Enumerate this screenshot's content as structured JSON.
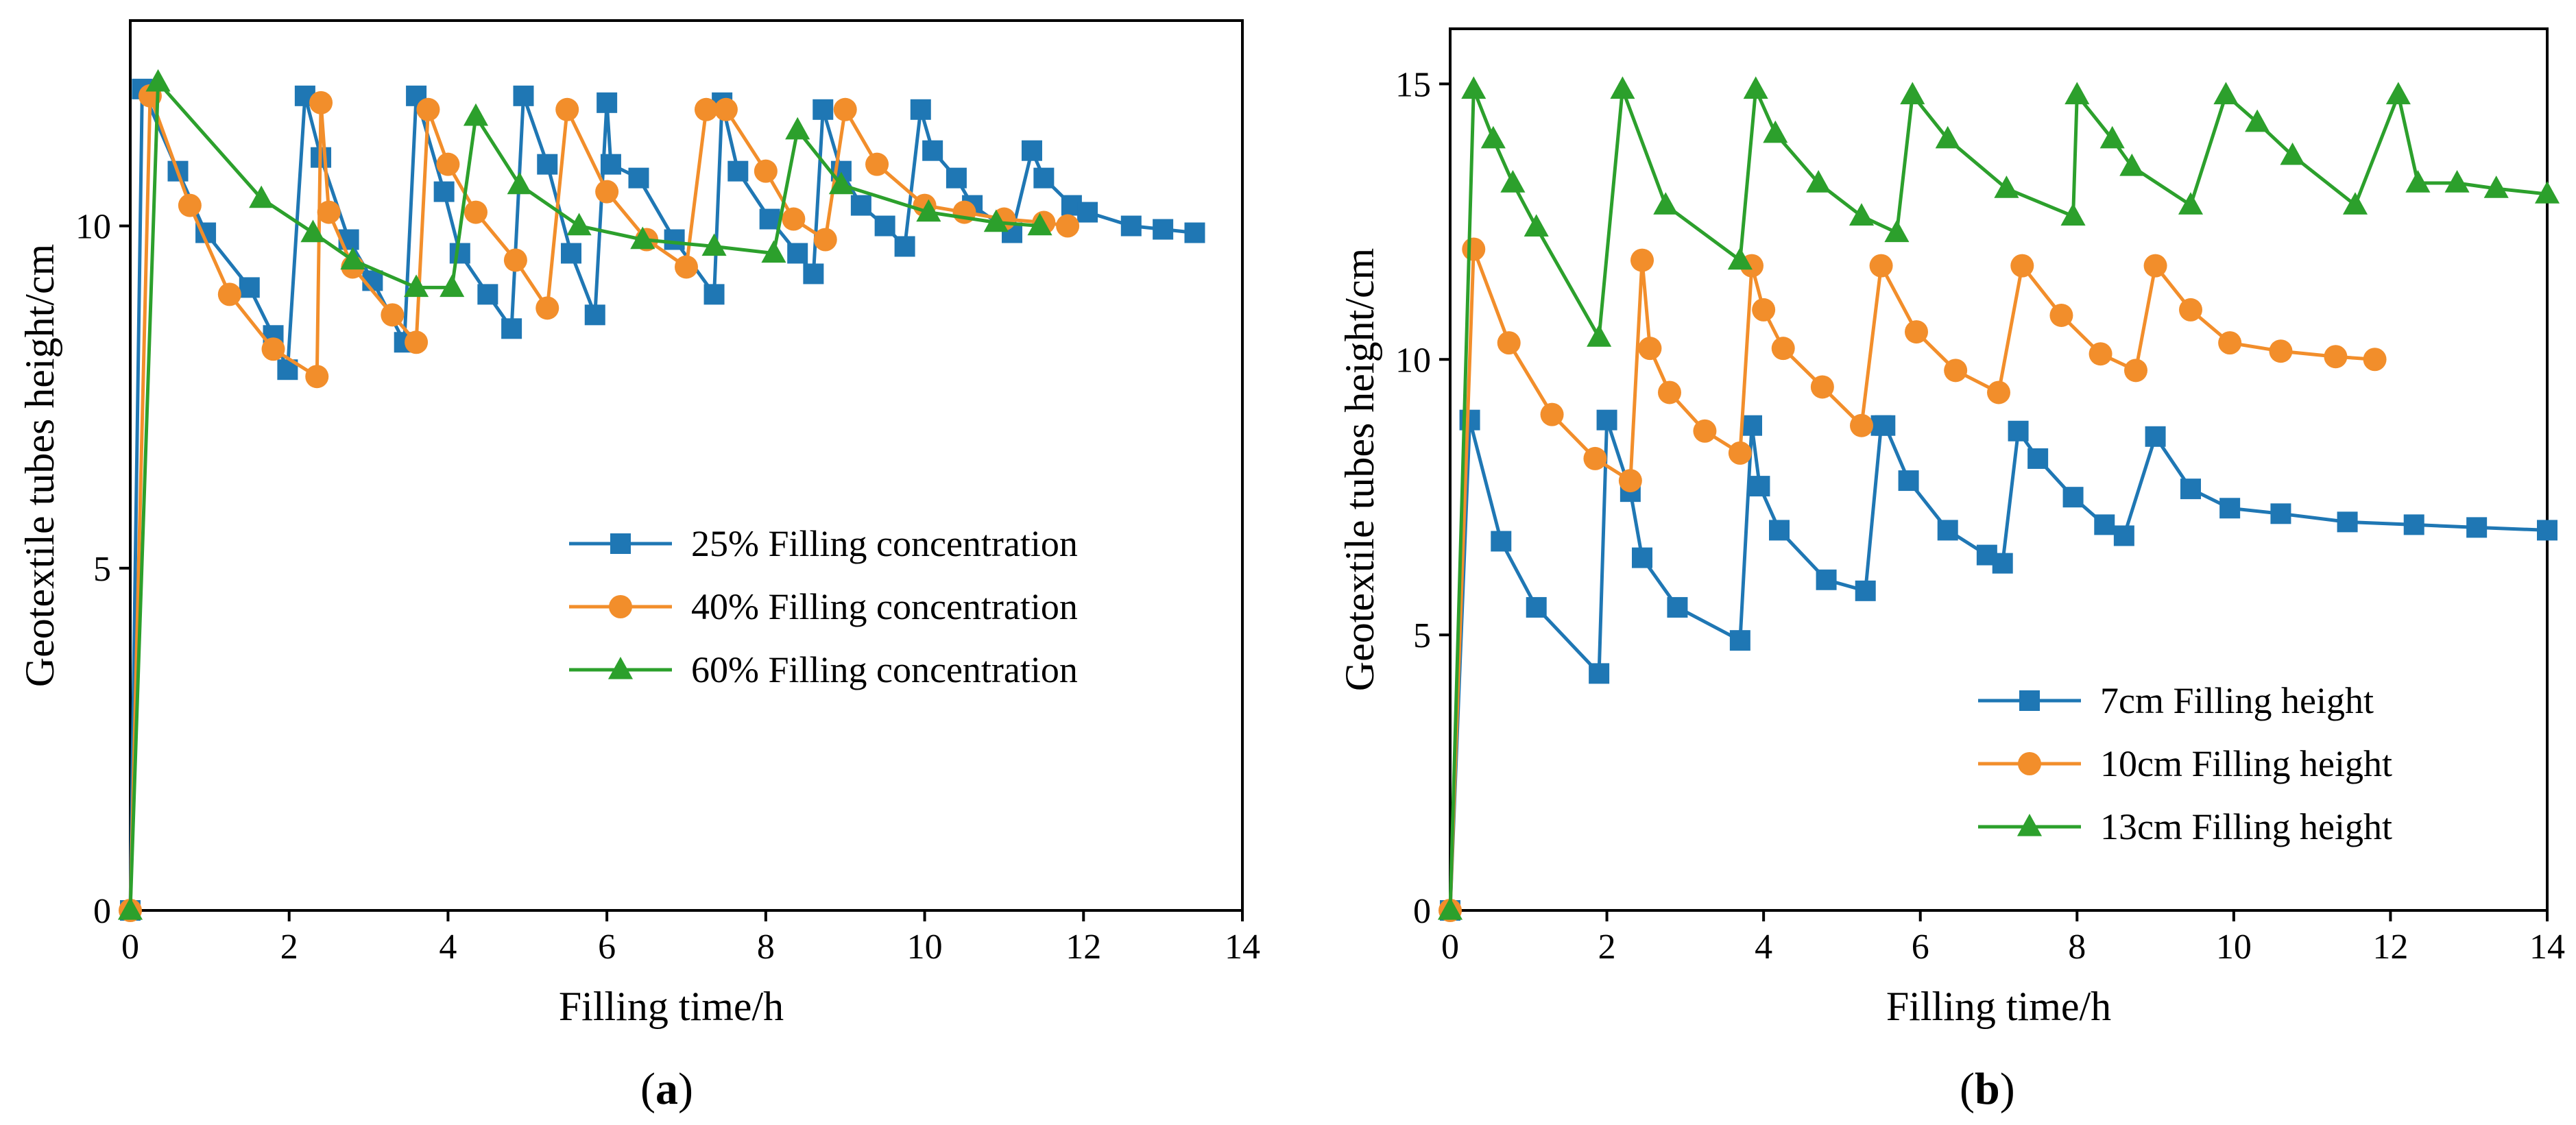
{
  "chart_data": [
    {
      "panel": "a",
      "type": "line",
      "xlabel": "Filling time/h",
      "ylabel": "Geotextile tubes height/cm",
      "xlim": [
        0,
        14
      ],
      "ylim": [
        0,
        13
      ],
      "xticks": [
        0,
        2,
        4,
        6,
        8,
        10,
        12,
        14
      ],
      "yticks": [
        0,
        5,
        10
      ],
      "legend_position": "center-right",
      "series": [
        {
          "name": "25% Filling concentration",
          "marker": "square",
          "color": "#1F77B4",
          "x": [
            0,
            0.15,
            0.6,
            0.95,
            1.5,
            1.8,
            1.98,
            2.2,
            2.4,
            2.75,
            3.05,
            3.45,
            3.6,
            3.95,
            4.15,
            4.5,
            4.8,
            4.95,
            5.25,
            5.55,
            5.85,
            6.0,
            6.05,
            6.4,
            6.85,
            7.35,
            7.45,
            7.65,
            8.05,
            8.4,
            8.6,
            8.72,
            8.95,
            9.2,
            9.5,
            9.75,
            9.95,
            10.1,
            10.4,
            10.6,
            11.1,
            11.35,
            11.5,
            11.85,
            12.05,
            12.6,
            13.0,
            13.4
          ],
          "y": [
            0,
            12.0,
            10.8,
            9.9,
            9.1,
            8.4,
            7.9,
            11.9,
            11.0,
            9.8,
            9.2,
            8.3,
            11.9,
            10.5,
            9.6,
            9.0,
            8.5,
            11.9,
            10.9,
            9.6,
            8.7,
            11.8,
            10.9,
            10.7,
            9.8,
            9.0,
            11.8,
            10.8,
            10.1,
            9.6,
            9.3,
            11.7,
            10.8,
            10.3,
            10.0,
            9.7,
            11.7,
            11.1,
            10.7,
            10.3,
            9.9,
            11.1,
            10.7,
            10.3,
            10.2,
            10.0,
            9.95,
            9.9
          ]
        },
        {
          "name": "40% Filling concentration",
          "marker": "circle",
          "color": "#F28E2B",
          "x": [
            0,
            0.25,
            0.75,
            1.25,
            1.8,
            2.35,
            2.4,
            2.5,
            2.8,
            3.3,
            3.6,
            3.75,
            4.0,
            4.35,
            4.85,
            5.25,
            5.5,
            6.0,
            6.5,
            7.0,
            7.25,
            7.5,
            8.0,
            8.35,
            8.75,
            9.0,
            9.4,
            10.0,
            10.5,
            11.0,
            11.5,
            11.8
          ],
          "y": [
            0,
            11.9,
            10.3,
            9.0,
            8.2,
            7.8,
            11.8,
            10.2,
            9.4,
            8.7,
            8.3,
            11.7,
            10.9,
            10.2,
            9.5,
            8.8,
            11.7,
            10.5,
            9.8,
            9.4,
            11.7,
            11.7,
            10.8,
            10.1,
            9.8,
            11.7,
            10.9,
            10.3,
            10.2,
            10.1,
            10.05,
            10.0
          ]
        },
        {
          "name": "60% Filling concentration",
          "marker": "triangle",
          "color": "#2CA02C",
          "x": [
            0,
            0.35,
            1.65,
            2.3,
            2.8,
            3.6,
            4.05,
            4.35,
            4.9,
            5.65,
            6.45,
            7.35,
            8.1,
            8.4,
            8.95,
            10.05,
            10.9,
            11.45
          ],
          "y": [
            0,
            12.1,
            10.4,
            9.9,
            9.5,
            9.1,
            9.1,
            11.6,
            10.6,
            10.0,
            9.8,
            9.7,
            9.6,
            11.4,
            10.6,
            10.2,
            10.05,
            10.0
          ]
        }
      ]
    },
    {
      "panel": "b",
      "type": "line",
      "xlabel": "Filling time/h",
      "ylabel": "Geotextile tubes height/cm",
      "xlim": [
        0,
        14
      ],
      "ylim": [
        0,
        16
      ],
      "xticks": [
        0,
        2,
        4,
        6,
        8,
        10,
        12,
        14
      ],
      "yticks": [
        0,
        5,
        10,
        15
      ],
      "legend_position": "bottom-right",
      "series": [
        {
          "name": "7cm Filling height",
          "marker": "square",
          "color": "#1F77B4",
          "x": [
            0,
            0.25,
            0.65,
            1.1,
            1.9,
            2.0,
            2.3,
            2.45,
            2.9,
            3.7,
            3.85,
            3.95,
            4.2,
            4.8,
            5.3,
            5.5,
            5.55,
            5.85,
            6.35,
            6.85,
            7.05,
            7.25,
            7.5,
            7.95,
            8.35,
            8.6,
            9.0,
            9.45,
            9.95,
            10.6,
            11.45,
            12.3,
            13.1,
            14.0
          ],
          "y": [
            0,
            8.9,
            6.7,
            5.5,
            4.3,
            8.9,
            7.6,
            6.4,
            5.5,
            4.9,
            8.8,
            7.7,
            6.9,
            6.0,
            5.8,
            8.8,
            8.8,
            7.8,
            6.9,
            6.45,
            6.3,
            8.7,
            8.2,
            7.5,
            7.0,
            6.8,
            8.6,
            7.65,
            7.3,
            7.2,
            7.05,
            7.0,
            6.95,
            6.9
          ]
        },
        {
          "name": "10cm Filling height",
          "marker": "circle",
          "color": "#F28E2B",
          "x": [
            0,
            0.3,
            0.75,
            1.3,
            1.85,
            2.3,
            2.45,
            2.55,
            2.8,
            3.25,
            3.7,
            3.85,
            4.0,
            4.25,
            4.75,
            5.25,
            5.5,
            5.95,
            6.45,
            7.0,
            7.3,
            7.8,
            8.3,
            8.75,
            9.0,
            9.45,
            9.95,
            10.6,
            11.3,
            11.8
          ],
          "y": [
            0,
            12.0,
            10.3,
            9.0,
            8.2,
            7.8,
            11.8,
            10.2,
            9.4,
            8.7,
            8.3,
            11.7,
            10.9,
            10.2,
            9.5,
            8.8,
            11.7,
            10.5,
            9.8,
            9.4,
            11.7,
            10.8,
            10.1,
            9.8,
            11.7,
            10.9,
            10.3,
            10.15,
            10.05,
            10.0
          ]
        },
        {
          "name": "13cm Filling height",
          "marker": "triangle",
          "color": "#2CA02C",
          "x": [
            0,
            0.3,
            0.55,
            0.8,
            1.1,
            1.9,
            2.2,
            2.75,
            3.7,
            3.9,
            4.15,
            4.7,
            5.25,
            5.7,
            5.9,
            6.35,
            7.1,
            7.95,
            8.0,
            8.45,
            8.7,
            9.45,
            9.9,
            10.3,
            10.75,
            11.55,
            12.1,
            12.35,
            12.85,
            13.35,
            14.0
          ],
          "y": [
            0,
            14.9,
            14.0,
            13.2,
            12.4,
            10.4,
            14.9,
            12.8,
            11.8,
            14.9,
            14.1,
            13.2,
            12.6,
            12.3,
            14.8,
            14.0,
            13.1,
            12.6,
            14.8,
            14.0,
            13.5,
            12.8,
            14.8,
            14.3,
            13.7,
            12.8,
            14.8,
            13.2,
            13.2,
            13.1,
            13.0
          ]
        }
      ]
    }
  ],
  "panel_labels": {
    "a": {
      "open": "(",
      "letter": "a",
      "close": ")"
    },
    "b": {
      "open": "(",
      "letter": "b",
      "close": ")"
    }
  }
}
